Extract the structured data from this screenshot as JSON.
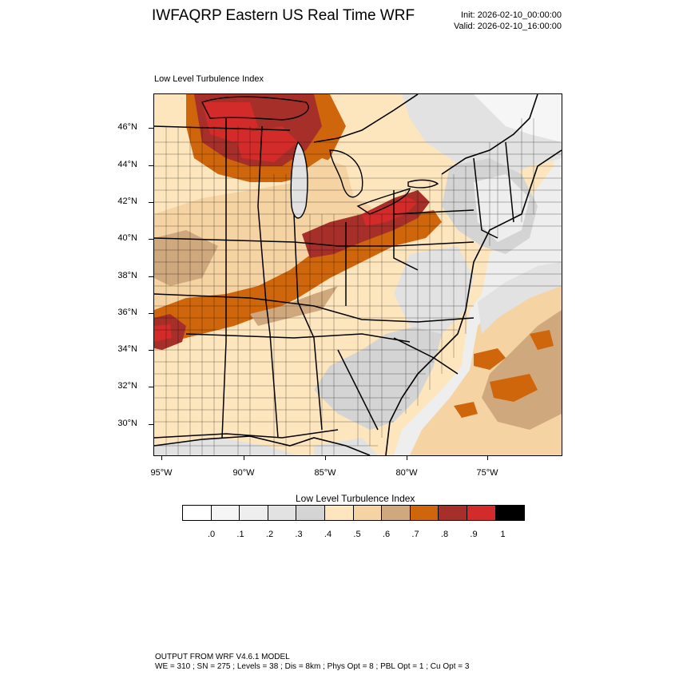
{
  "header": {
    "title": "IWFAQRP Eastern US Real Time WRF",
    "init": "Init: 2026-02-10_00:00:00",
    "valid": "Valid: 2026-02-10_16:00:00"
  },
  "plot": {
    "label": "Low Level Turbulence Index",
    "y_ticks": [
      "46°N",
      "44°N",
      "42°N",
      "40°N",
      "38°N",
      "36°N",
      "34°N",
      "32°N",
      "30°N"
    ],
    "x_ticks": [
      "95°W",
      "90°W",
      "85°W",
      "80°W",
      "75°W"
    ]
  },
  "colorbar": {
    "title": "Low Level Turbulence Index",
    "colors": [
      "#ffffff",
      "#f6f6f6",
      "#eeeeee",
      "#e2e2e2",
      "#d4d4d4",
      "#fde6bd",
      "#f5d3a3",
      "#d0a87e",
      "#cf660c",
      "#a62f2a",
      "#d32a2a",
      "#000000"
    ],
    "labels": [
      ".0",
      ".1",
      ".2",
      ".3",
      ".4",
      ".5",
      ".6",
      ".7",
      ".8",
      ".9",
      "1"
    ]
  },
  "footer": {
    "line1": "OUTPUT FROM WRF V4.6.1 MODEL",
    "line2": "WE = 310 ; SN = 275 ; Levels = 38 ; Dis = 8km ; Phys Opt = 8 ; PBL Opt = 1 ; Cu Opt = 3"
  }
}
